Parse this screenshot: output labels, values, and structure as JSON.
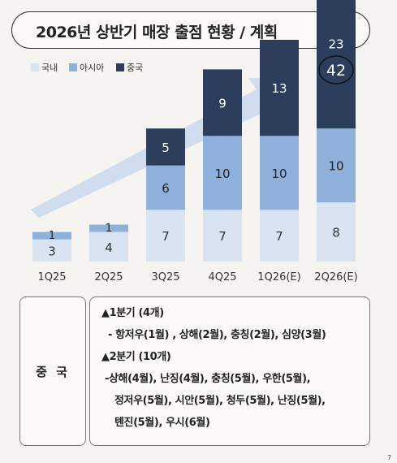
{
  "title": "2026년 상반기 매장 출점 현황 / 계획",
  "page_number": "7",
  "china_section": {
    "label": "중 국",
    "lines": [
      "▲1분기 (4개)",
      "- 항저우(1월) , 상해(2월), 충칭(2월), 심양(3월)",
      "▲2분기 (10개)",
      "-상해(4월), 난징(4월), 충칭(5월), 우한(5월),",
      "정저우(5월), 시안(5월), 청두(5월), 난징(5월),",
      "톈진(5월), 우시(6월)"
    ]
  },
  "colors": {
    "domestic": "#d9e3f1",
    "asia": "#8fb0da",
    "china": "#2c3e5c",
    "arrow": "#c9d8ee",
    "total_badge": "#2c3e5c"
  },
  "chart_data": {
    "type": "bar",
    "stacked": true,
    "categories": [
      "1Q25",
      "2Q25",
      "3Q25",
      "4Q25",
      "1Q26(E)",
      "2Q26(E)"
    ],
    "series": [
      {
        "name": "국내",
        "values": [
          3,
          4,
          7,
          7,
          7,
          8
        ]
      },
      {
        "name": "아시아",
        "values": [
          1,
          1,
          6,
          10,
          10,
          10
        ]
      },
      {
        "name": "중국",
        "values": [
          0,
          0,
          5,
          9,
          13,
          23
        ]
      }
    ],
    "total_badge": "42",
    "legend": "top-left"
  }
}
